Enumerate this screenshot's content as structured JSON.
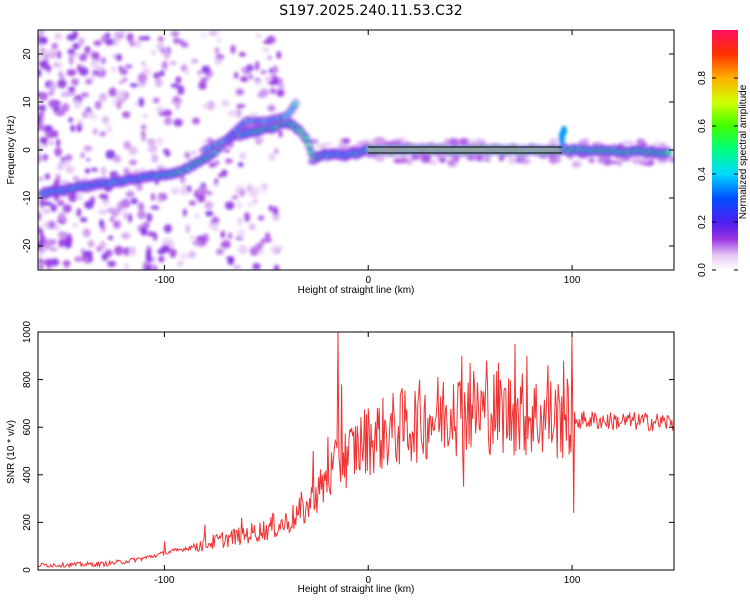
{
  "title": "S197.2025.240.11.53.C32",
  "chart_data": [
    {
      "type": "heatmap",
      "xlabel": "Height of straight line (km)",
      "ylabel": "Frequency (Hz)",
      "xlim": [
        -162,
        150
      ],
      "ylim": [
        -25,
        25
      ],
      "xticks": [
        -100,
        0,
        100
      ],
      "yticks": [
        -20,
        -10,
        0,
        10,
        20
      ],
      "colorbar": {
        "label": "Normalized spectral amplitude",
        "range": [
          0,
          1
        ],
        "ticks": [
          "0.0",
          "0.2",
          "0.4",
          "0.6",
          "0.8"
        ],
        "tick_values": [
          0,
          0.2,
          0.4,
          0.6,
          0.8
        ]
      },
      "ridge": {
        "description_points": [
          [
            -160,
            -9
          ],
          [
            -145,
            -8
          ],
          [
            -130,
            -7
          ],
          [
            -115,
            -6
          ],
          [
            -105,
            -5.5
          ],
          [
            -95,
            -5
          ],
          [
            -85,
            -3
          ],
          [
            -78,
            -1
          ],
          [
            -70,
            1.5
          ],
          [
            -65,
            3
          ],
          [
            -55,
            4
          ],
          [
            -45,
            5
          ],
          [
            -40,
            6
          ],
          [
            -35,
            4.5
          ],
          [
            -30,
            2
          ],
          [
            -27,
            -1.5
          ],
          [
            -20,
            -1
          ],
          [
            -10,
            -1
          ],
          [
            0,
            0
          ],
          [
            50,
            0
          ],
          [
            95,
            0
          ],
          [
            100,
            0
          ],
          [
            148,
            -0.5
          ]
        ],
        "branch_points": [
          [
            -80,
            0
          ],
          [
            -70,
            2
          ],
          [
            -60,
            6
          ],
          [
            -50,
            6
          ],
          [
            -40,
            7
          ],
          [
            -35,
            10
          ]
        ]
      },
      "line_segment": {
        "x": [
          0,
          95
        ],
        "y": 0
      }
    },
    {
      "type": "line",
      "xlabel": "Height of straight line (km)",
      "ylabel": "SNR (10 * v/v)",
      "xlim": [
        -162,
        150
      ],
      "ylim": [
        0,
        1000
      ],
      "xticks": [
        -100,
        0,
        100
      ],
      "yticks": [
        0,
        200,
        400,
        600,
        800,
        1000
      ],
      "color": "#ee3333",
      "trend_points": [
        [
          -162,
          20
        ],
        [
          -130,
          25
        ],
        [
          -120,
          35
        ],
        [
          -110,
          50
        ],
        [
          -100,
          70
        ],
        [
          -90,
          90
        ],
        [
          -80,
          110
        ],
        [
          -70,
          130
        ],
        [
          -60,
          150
        ],
        [
          -50,
          170
        ],
        [
          -40,
          200
        ],
        [
          -35,
          230
        ],
        [
          -30,
          260
        ],
        [
          -25,
          320
        ],
        [
          -20,
          380
        ],
        [
          -15,
          440
        ],
        [
          -10,
          480
        ],
        [
          -5,
          520
        ],
        [
          0,
          550
        ],
        [
          10,
          580
        ],
        [
          20,
          610
        ],
        [
          30,
          640
        ],
        [
          40,
          660
        ],
        [
          50,
          670
        ],
        [
          60,
          670
        ],
        [
          70,
          660
        ],
        [
          80,
          650
        ],
        [
          90,
          640
        ],
        [
          100,
          630
        ],
        [
          110,
          630
        ],
        [
          120,
          625
        ],
        [
          130,
          625
        ],
        [
          150,
          620
        ]
      ],
      "spikes": [
        [
          -15,
          1000
        ],
        [
          -13,
          780
        ],
        [
          -20,
          560
        ],
        [
          -27,
          500
        ],
        [
          -33,
          330
        ],
        [
          -47,
          240
        ],
        [
          -62,
          220
        ],
        [
          -80,
          190
        ],
        [
          -100,
          120
        ],
        [
          42,
          780
        ],
        [
          46,
          900
        ],
        [
          50,
          870
        ],
        [
          58,
          880
        ],
        [
          64,
          870
        ],
        [
          72,
          950
        ],
        [
          78,
          900
        ],
        [
          88,
          860
        ],
        [
          96,
          880
        ],
        [
          100,
          980
        ],
        [
          101,
          240
        ],
        [
          47,
          350
        ]
      ]
    }
  ]
}
